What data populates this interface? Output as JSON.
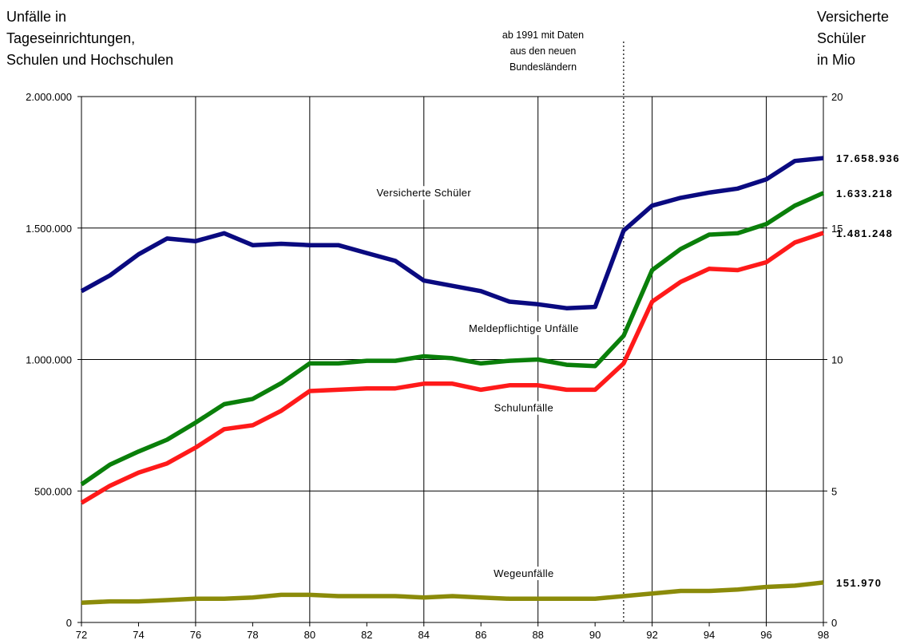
{
  "chart_data": {
    "type": "line",
    "title_left_lines": [
      "Unfälle in",
      "Tageseinrichtungen,",
      "Schulen und Hochschulen"
    ],
    "title_right_lines": [
      "Versicherte",
      "Schüler",
      "in Mio"
    ],
    "annotation_lines": [
      "ab 1991 mit Daten",
      "aus den neuen",
      "Bundesländern"
    ],
    "x_ticks": [
      "72",
      "74",
      "76",
      "78",
      "80",
      "82",
      "84",
      "86",
      "88",
      "90",
      "92",
      "94",
      "96",
      "98"
    ],
    "xlim": [
      72,
      98
    ],
    "y_left": {
      "ylim": [
        0,
        2000000
      ],
      "ticks": [
        0,
        500000,
        1000000,
        1500000,
        2000000
      ],
      "tick_labels": [
        "0",
        "500.000",
        "1.000.000",
        "1.500.000",
        "2.000.000"
      ]
    },
    "y_right": {
      "ylim": [
        0,
        20
      ],
      "ticks": [
        0,
        5,
        10,
        15,
        20
      ],
      "tick_labels": [
        "0",
        "5",
        "10",
        "15",
        "20"
      ]
    },
    "grid_x": [
      72,
      76,
      80,
      84,
      88,
      92,
      96,
      98
    ],
    "grid_y": [
      500000,
      1000000,
      1500000,
      2000000
    ],
    "marker_year": 91,
    "x": [
      72,
      73,
      74,
      75,
      76,
      77,
      78,
      79,
      80,
      81,
      82,
      83,
      84,
      85,
      86,
      87,
      88,
      89,
      90,
      91,
      92,
      93,
      94,
      95,
      96,
      97,
      98
    ],
    "series": [
      {
        "name": "Versicherte Schüler",
        "axis": "right",
        "color": "#0a0a80",
        "label_x": 84,
        "label_y": 16.2,
        "end_label": "17.658.936",
        "values": [
          12.6,
          13.2,
          14.0,
          14.6,
          14.5,
          14.8,
          14.35,
          14.4,
          14.35,
          14.35,
          14.05,
          13.75,
          13.0,
          12.8,
          12.6,
          12.2,
          12.1,
          11.95,
          12.0,
          14.9,
          15.85,
          16.15,
          16.35,
          16.5,
          16.85,
          17.55,
          17.66
        ]
      },
      {
        "name": "Meldepflichtige Unfälle",
        "axis": "left",
        "color": "#0a7f0a",
        "label_x": 87.5,
        "label_y": 1105000,
        "end_label": "1.633.218",
        "values": [
          525000,
          600000,
          650000,
          695000,
          760000,
          830000,
          850000,
          910000,
          985000,
          985000,
          995000,
          995000,
          1012000,
          1005000,
          985000,
          995000,
          1000000,
          980000,
          975000,
          1090000,
          1340000,
          1420000,
          1475000,
          1480000,
          1515000,
          1585000,
          1633218
        ]
      },
      {
        "name": "Schulunfälle",
        "axis": "left",
        "color": "#ff1a1a",
        "label_x": 87.5,
        "label_y": 802000,
        "end_label": "1.481.248",
        "values": [
          455000,
          520000,
          570000,
          605000,
          665000,
          735000,
          750000,
          805000,
          880000,
          885000,
          890000,
          890000,
          908000,
          908000,
          885000,
          902000,
          902000,
          885000,
          885000,
          985000,
          1220000,
          1295000,
          1345000,
          1340000,
          1370000,
          1445000,
          1481248
        ]
      },
      {
        "name": "Wegeunfälle",
        "axis": "left",
        "color": "#8b8b0a",
        "label_x": 87.5,
        "label_y": 173000,
        "end_label": "151.970",
        "values": [
          75000,
          80000,
          80000,
          85000,
          90000,
          90000,
          95000,
          105000,
          105000,
          100000,
          100000,
          100000,
          95000,
          100000,
          95000,
          90000,
          90000,
          90000,
          90000,
          100000,
          110000,
          120000,
          120000,
          125000,
          135000,
          140000,
          151970
        ]
      }
    ]
  }
}
